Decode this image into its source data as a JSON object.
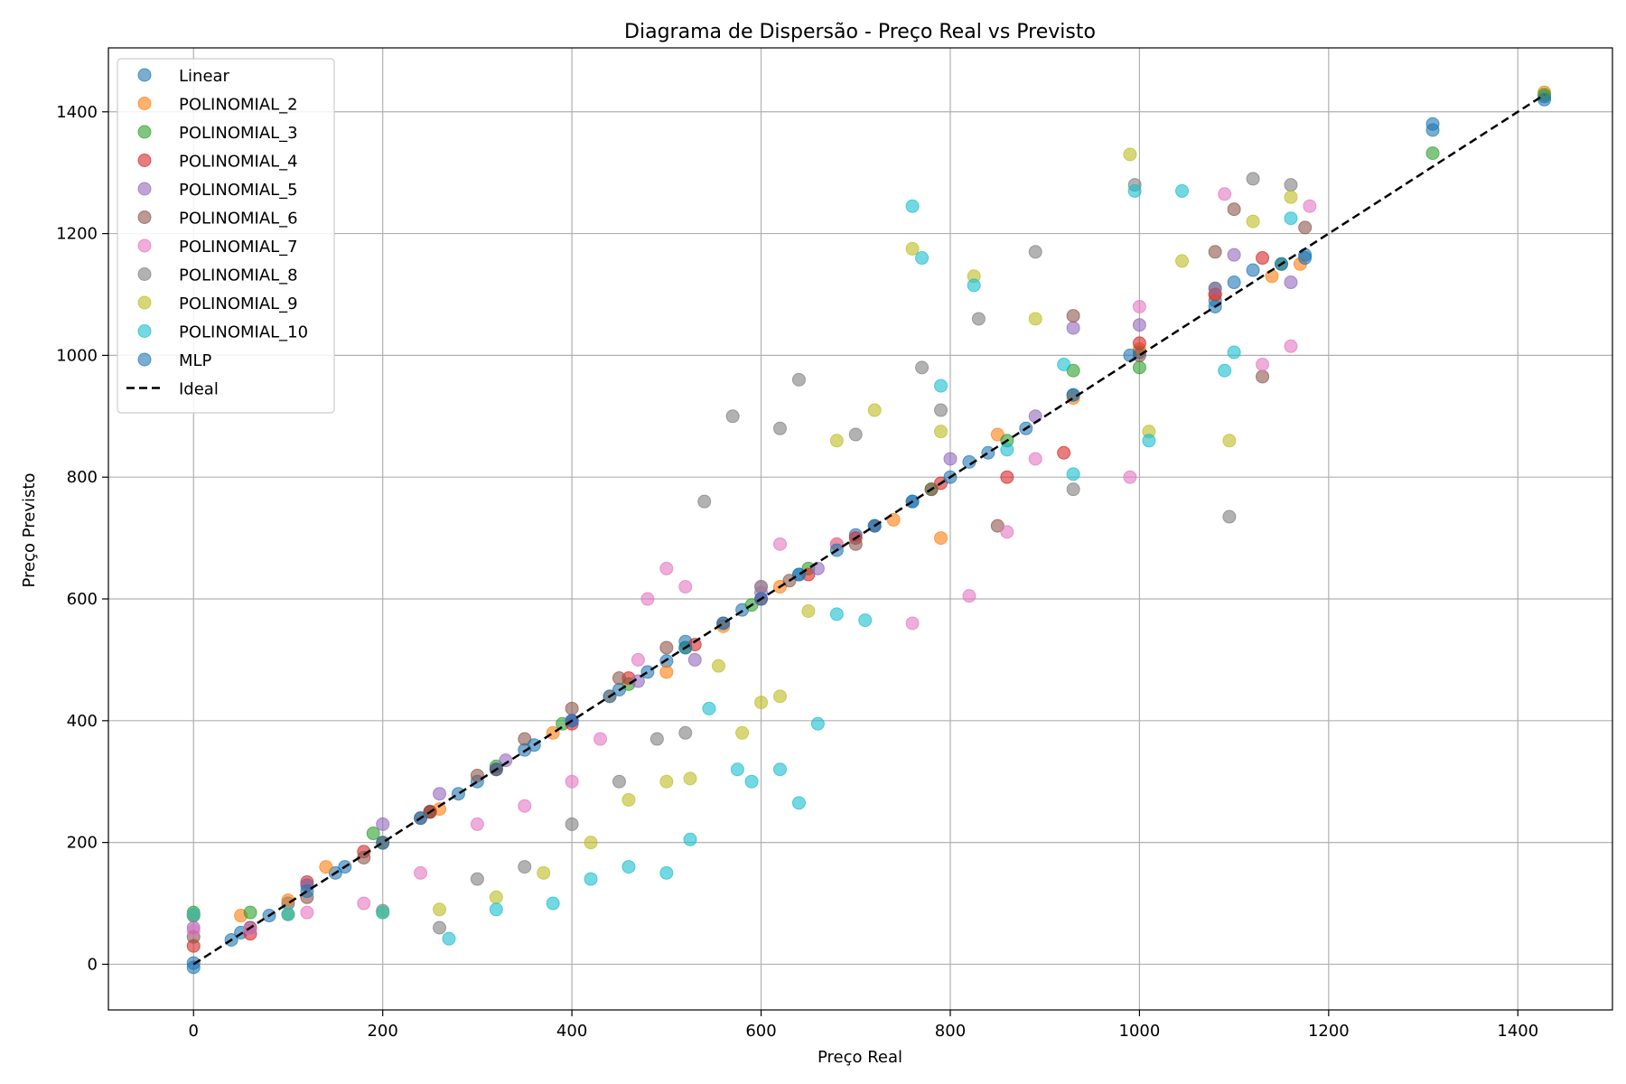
{
  "chart_data": {
    "type": "scatter",
    "title": "Diagrama de Dispersão - Preço Real vs Previsto",
    "xlabel": "Preço Real",
    "ylabel": "Preço Previsto",
    "xlim": [
      -90,
      1500
    ],
    "ylim": [
      -75,
      1505
    ],
    "x_ticks": [
      0,
      200,
      400,
      600,
      800,
      1000,
      1200,
      1400
    ],
    "y_ticks": [
      0,
      200,
      400,
      600,
      800,
      1000,
      1200,
      1400
    ],
    "grid": true,
    "legend_position": "top-left",
    "series": [
      {
        "name": "Linear",
        "color": "#1f77b4",
        "points": [
          [
            0,
            2
          ],
          [
            50,
            52
          ],
          [
            100,
            100
          ],
          [
            150,
            150
          ],
          [
            200,
            199
          ],
          [
            250,
            251
          ],
          [
            300,
            300
          ],
          [
            350,
            352
          ],
          [
            400,
            400
          ],
          [
            450,
            451
          ],
          [
            500,
            498
          ],
          [
            520,
            530
          ],
          [
            580,
            582
          ],
          [
            640,
            640
          ],
          [
            700,
            705
          ],
          [
            760,
            760
          ],
          [
            820,
            825
          ],
          [
            930,
            935
          ],
          [
            1000,
            1005
          ],
          [
            1080,
            1090
          ],
          [
            1120,
            1140
          ],
          [
            1175,
            1165
          ],
          [
            1310,
            1370
          ],
          [
            1428,
            1425
          ]
        ]
      },
      {
        "name": "POLINOMIAL_2",
        "color": "#ff7f0e",
        "points": [
          [
            0,
            80
          ],
          [
            50,
            80
          ],
          [
            100,
            105
          ],
          [
            140,
            160
          ],
          [
            200,
            200
          ],
          [
            260,
            255
          ],
          [
            320,
            320
          ],
          [
            380,
            380
          ],
          [
            440,
            440
          ],
          [
            500,
            480
          ],
          [
            560,
            555
          ],
          [
            620,
            620
          ],
          [
            680,
            690
          ],
          [
            740,
            730
          ],
          [
            790,
            700
          ],
          [
            850,
            870
          ],
          [
            930,
            930
          ],
          [
            1000,
            1010
          ],
          [
            1080,
            1100
          ],
          [
            1140,
            1130
          ],
          [
            1170,
            1150
          ],
          [
            1428,
            1432
          ]
        ]
      },
      {
        "name": "POLINOMIAL_3",
        "color": "#2ca02c",
        "points": [
          [
            0,
            85
          ],
          [
            60,
            85
          ],
          [
            120,
            130
          ],
          [
            190,
            215
          ],
          [
            250,
            250
          ],
          [
            320,
            325
          ],
          [
            390,
            395
          ],
          [
            460,
            460
          ],
          [
            520,
            520
          ],
          [
            590,
            590
          ],
          [
            650,
            650
          ],
          [
            720,
            720
          ],
          [
            780,
            780
          ],
          [
            860,
            860
          ],
          [
            930,
            975
          ],
          [
            1000,
            980
          ],
          [
            1080,
            1110
          ],
          [
            1150,
            1150
          ],
          [
            1310,
            1332
          ],
          [
            1428,
            1428
          ]
        ]
      },
      {
        "name": "POLINOMIAL_4",
        "color": "#d62728",
        "points": [
          [
            0,
            30
          ],
          [
            60,
            50
          ],
          [
            120,
            135
          ],
          [
            180,
            185
          ],
          [
            250,
            250
          ],
          [
            320,
            320
          ],
          [
            400,
            395
          ],
          [
            460,
            470
          ],
          [
            530,
            525
          ],
          [
            600,
            600
          ],
          [
            650,
            640
          ],
          [
            700,
            700
          ],
          [
            790,
            790
          ],
          [
            860,
            800
          ],
          [
            920,
            840
          ],
          [
            1000,
            1020
          ],
          [
            1080,
            1100
          ],
          [
            1130,
            1160
          ]
        ]
      },
      {
        "name": "POLINOMIAL_5",
        "color": "#9467bd",
        "points": [
          [
            0,
            60
          ],
          [
            60,
            60
          ],
          [
            120,
            130
          ],
          [
            200,
            230
          ],
          [
            260,
            280
          ],
          [
            330,
            335
          ],
          [
            400,
            400
          ],
          [
            470,
            465
          ],
          [
            530,
            500
          ],
          [
            600,
            610
          ],
          [
            660,
            650
          ],
          [
            720,
            720
          ],
          [
            800,
            830
          ],
          [
            890,
            900
          ],
          [
            930,
            1045
          ],
          [
            1000,
            1050
          ],
          [
            1080,
            1110
          ],
          [
            1100,
            1165
          ],
          [
            1160,
            1120
          ]
        ]
      },
      {
        "name": "POLINOMIAL_6",
        "color": "#8c564b",
        "points": [
          [
            0,
            45
          ],
          [
            60,
            60
          ],
          [
            120,
            110
          ],
          [
            180,
            175
          ],
          [
            240,
            240
          ],
          [
            300,
            310
          ],
          [
            350,
            370
          ],
          [
            400,
            420
          ],
          [
            450,
            470
          ],
          [
            500,
            520
          ],
          [
            560,
            560
          ],
          [
            630,
            630
          ],
          [
            700,
            690
          ],
          [
            780,
            780
          ],
          [
            850,
            720
          ],
          [
            930,
            1065
          ],
          [
            1000,
            1000
          ],
          [
            1080,
            1170
          ],
          [
            1100,
            1240
          ],
          [
            1130,
            965
          ],
          [
            1175,
            1210
          ]
        ]
      },
      {
        "name": "POLINOMIAL_7",
        "color": "#e377c2",
        "points": [
          [
            0,
            55
          ],
          [
            60,
            58
          ],
          [
            120,
            85
          ],
          [
            180,
            100
          ],
          [
            240,
            150
          ],
          [
            300,
            230
          ],
          [
            350,
            260
          ],
          [
            400,
            300
          ],
          [
            430,
            370
          ],
          [
            470,
            500
          ],
          [
            480,
            600
          ],
          [
            500,
            650
          ],
          [
            520,
            620
          ],
          [
            600,
            620
          ],
          [
            620,
            690
          ],
          [
            680,
            690
          ],
          [
            760,
            560
          ],
          [
            820,
            605
          ],
          [
            860,
            710
          ],
          [
            890,
            830
          ],
          [
            990,
            800
          ],
          [
            1000,
            1080
          ],
          [
            1090,
            1265
          ],
          [
            1130,
            985
          ],
          [
            1160,
            1015
          ],
          [
            1180,
            1245
          ]
        ]
      },
      {
        "name": "POLINOMIAL_8",
        "color": "#7f7f7f",
        "points": [
          [
            0,
            80
          ],
          [
            100,
            82
          ],
          [
            200,
            88
          ],
          [
            260,
            60
          ],
          [
            300,
            140
          ],
          [
            350,
            160
          ],
          [
            400,
            230
          ],
          [
            450,
            300
          ],
          [
            490,
            370
          ],
          [
            520,
            380
          ],
          [
            540,
            760
          ],
          [
            570,
            900
          ],
          [
            600,
            620
          ],
          [
            620,
            880
          ],
          [
            640,
            960
          ],
          [
            700,
            870
          ],
          [
            770,
            980
          ],
          [
            790,
            910
          ],
          [
            830,
            1060
          ],
          [
            890,
            1170
          ],
          [
            930,
            780
          ],
          [
            995,
            1280
          ],
          [
            1095,
            735
          ],
          [
            1120,
            1290
          ],
          [
            1160,
            1280
          ]
        ]
      },
      {
        "name": "POLINOMIAL_9",
        "color": "#bcbd22",
        "points": [
          [
            0,
            82
          ],
          [
            100,
            82
          ],
          [
            200,
            85
          ],
          [
            260,
            90
          ],
          [
            320,
            110
          ],
          [
            370,
            150
          ],
          [
            420,
            200
          ],
          [
            460,
            270
          ],
          [
            500,
            300
          ],
          [
            525,
            305
          ],
          [
            555,
            490
          ],
          [
            580,
            380
          ],
          [
            600,
            430
          ],
          [
            620,
            440
          ],
          [
            650,
            580
          ],
          [
            680,
            860
          ],
          [
            720,
            910
          ],
          [
            760,
            1175
          ],
          [
            790,
            875
          ],
          [
            825,
            1130
          ],
          [
            890,
            1060
          ],
          [
            990,
            1330
          ],
          [
            1010,
            875
          ],
          [
            1045,
            1155
          ],
          [
            1095,
            860
          ],
          [
            1120,
            1220
          ],
          [
            1160,
            1260
          ]
        ]
      },
      {
        "name": "POLINOMIAL_10",
        "color": "#17becf",
        "points": [
          [
            0,
            82
          ],
          [
            100,
            82
          ],
          [
            200,
            85
          ],
          [
            270,
            42
          ],
          [
            320,
            90
          ],
          [
            380,
            100
          ],
          [
            420,
            140
          ],
          [
            460,
            160
          ],
          [
            500,
            150
          ],
          [
            525,
            205
          ],
          [
            545,
            420
          ],
          [
            575,
            320
          ],
          [
            590,
            300
          ],
          [
            620,
            320
          ],
          [
            640,
            265
          ],
          [
            660,
            395
          ],
          [
            680,
            575
          ],
          [
            710,
            565
          ],
          [
            760,
            1245
          ],
          [
            770,
            1160
          ],
          [
            790,
            950
          ],
          [
            825,
            1115
          ],
          [
            860,
            845
          ],
          [
            920,
            985
          ],
          [
            930,
            805
          ],
          [
            995,
            1270
          ],
          [
            1010,
            860
          ],
          [
            1045,
            1270
          ],
          [
            1090,
            975
          ],
          [
            1100,
            1005
          ],
          [
            1160,
            1225
          ]
        ]
      },
      {
        "name": "MLP",
        "color": "#1f77b4",
        "points": [
          [
            0,
            -5
          ],
          [
            40,
            40
          ],
          [
            80,
            80
          ],
          [
            120,
            120
          ],
          [
            160,
            160
          ],
          [
            200,
            200
          ],
          [
            240,
            240
          ],
          [
            280,
            280
          ],
          [
            320,
            320
          ],
          [
            360,
            360
          ],
          [
            400,
            400
          ],
          [
            440,
            440
          ],
          [
            480,
            480
          ],
          [
            520,
            520
          ],
          [
            560,
            560
          ],
          [
            600,
            600
          ],
          [
            640,
            640
          ],
          [
            680,
            680
          ],
          [
            720,
            720
          ],
          [
            760,
            760
          ],
          [
            800,
            800
          ],
          [
            840,
            840
          ],
          [
            880,
            880
          ],
          [
            930,
            935
          ],
          [
            990,
            1000
          ],
          [
            1080,
            1080
          ],
          [
            1100,
            1120
          ],
          [
            1150,
            1150
          ],
          [
            1175,
            1160
          ],
          [
            1310,
            1380
          ],
          [
            1428,
            1420
          ]
        ]
      }
    ],
    "reference_line": {
      "name": "Ideal",
      "color": "#000000",
      "style": "dashed",
      "from": [
        0,
        0
      ],
      "to": [
        1428,
        1428
      ]
    }
  }
}
